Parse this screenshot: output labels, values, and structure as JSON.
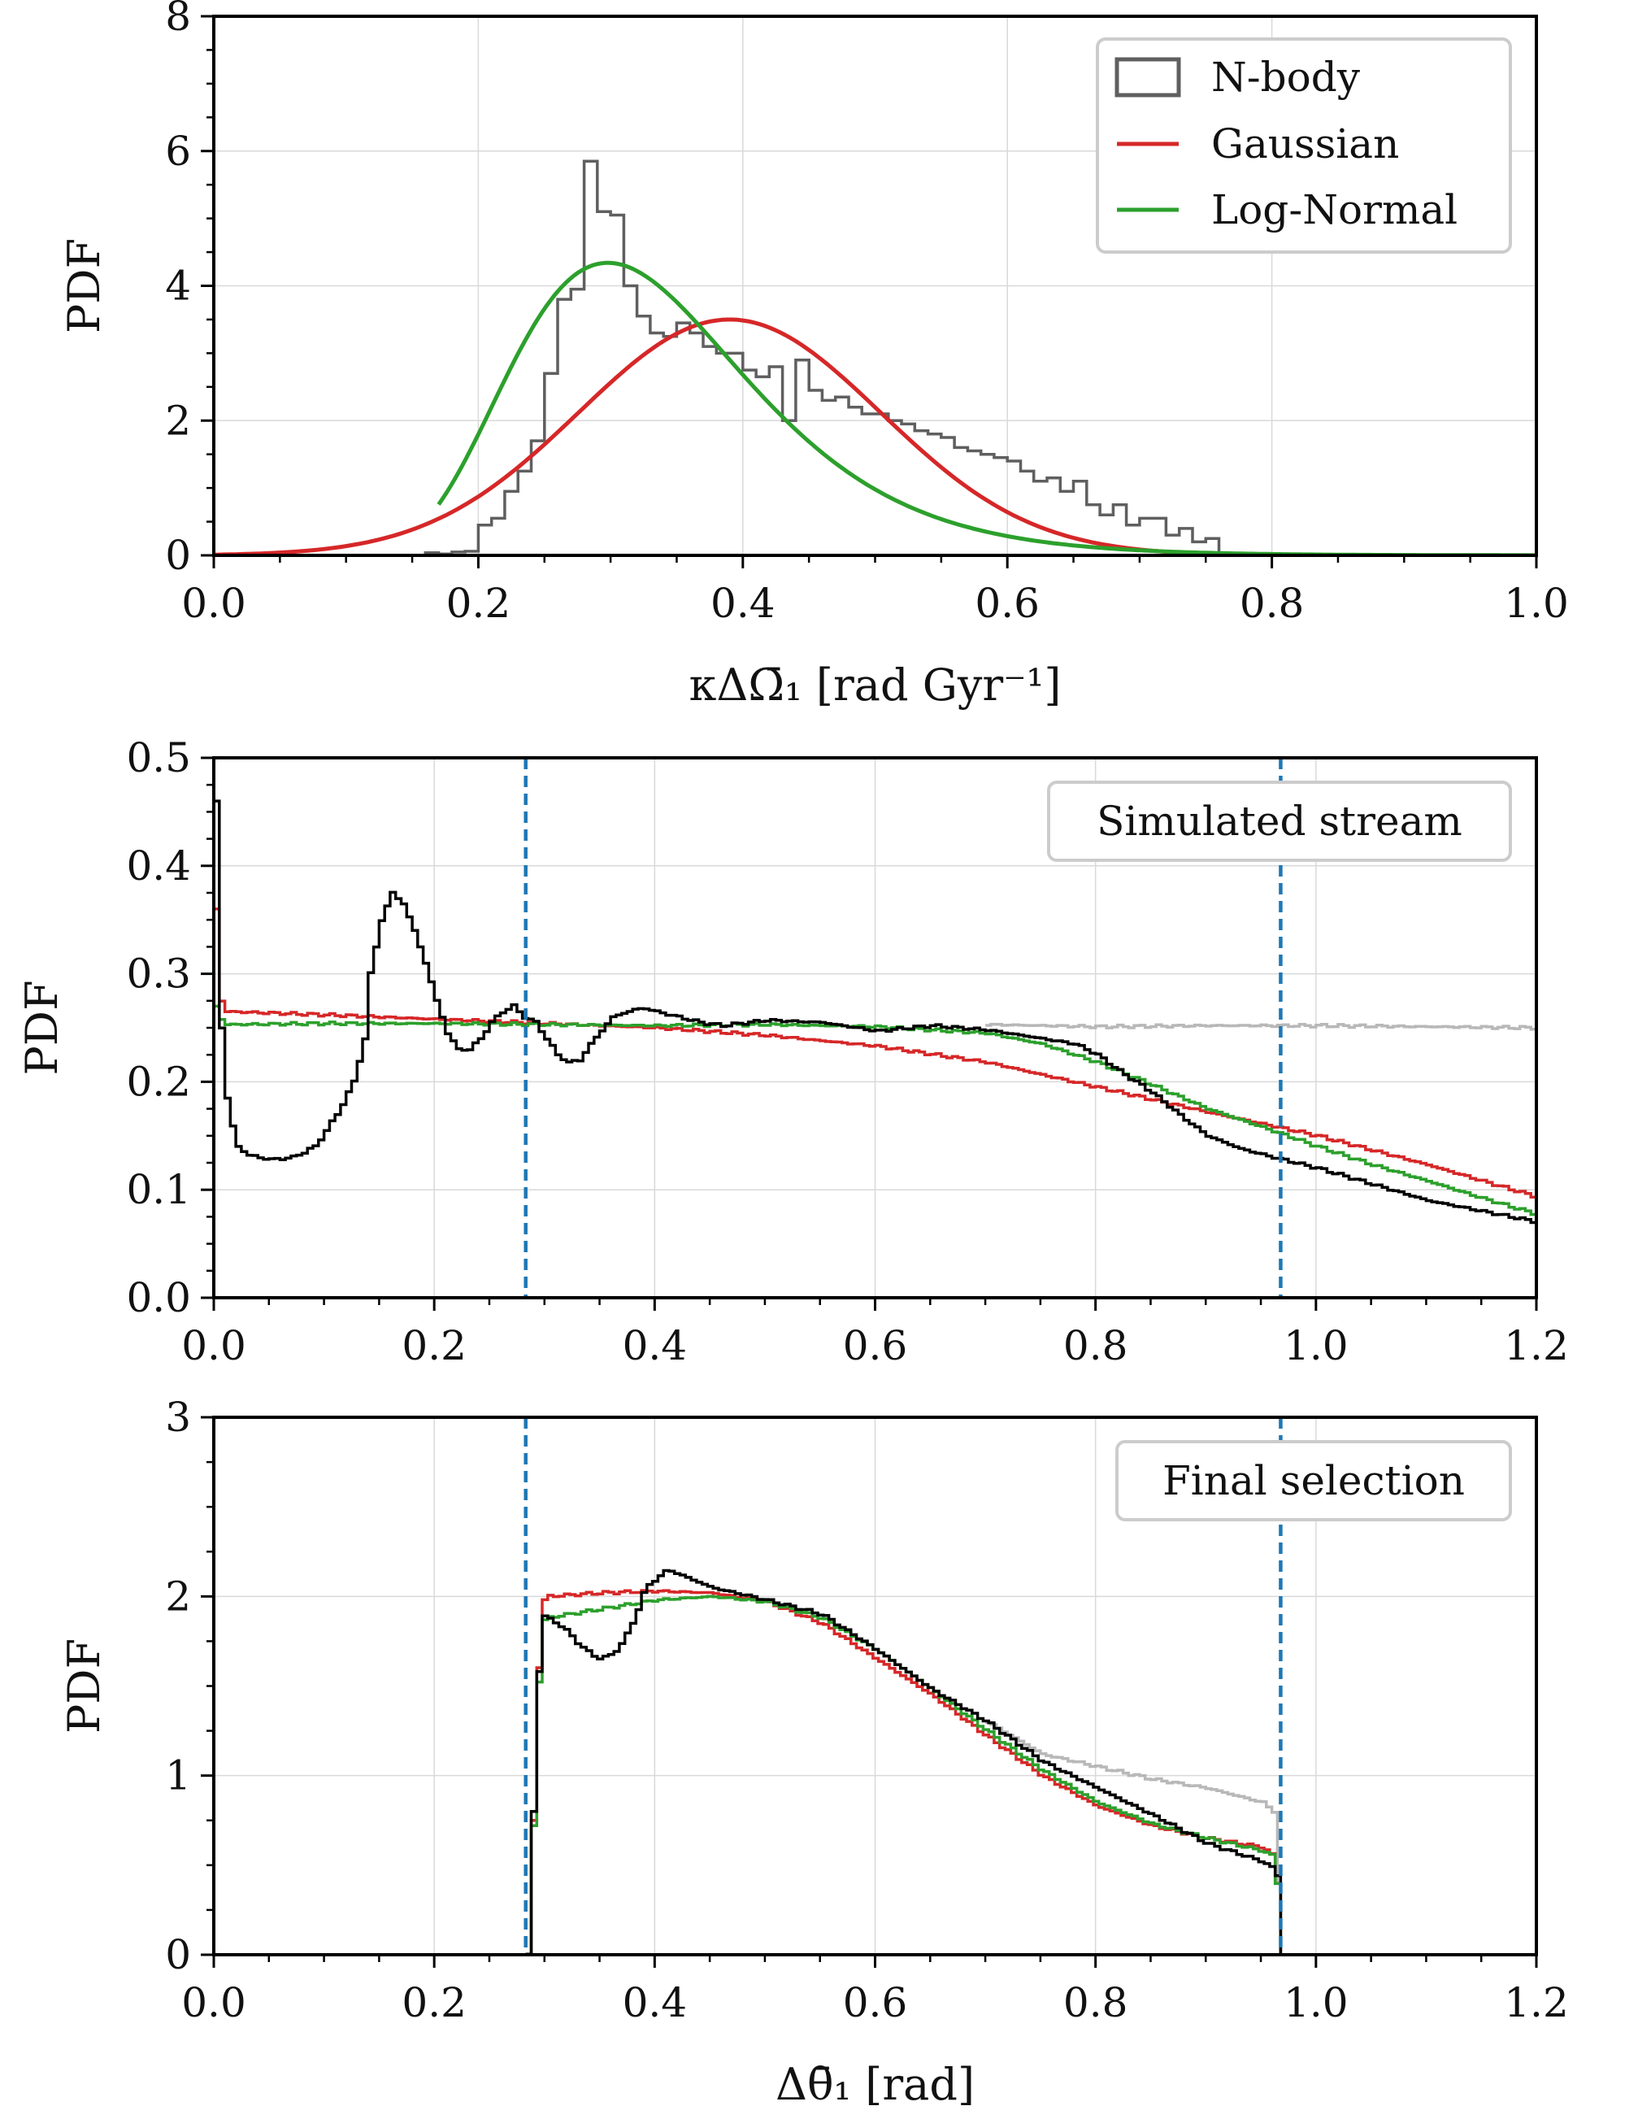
{
  "colors": {
    "nbody": "#5f5f5f",
    "gaussian": "#d62728",
    "lognormal": "#2ca02c",
    "stream_black": "#000000",
    "stream_gray": "#b8b8b8",
    "cut_line": "#1f77b4"
  },
  "chart_data": [
    {
      "type": "line",
      "panel": "top",
      "xlabel": "κΔΩ̄₁ [rad Gyr⁻¹]",
      "ylabel": "PDF",
      "xlim": [
        0.0,
        1.0
      ],
      "ylim": [
        0,
        8
      ],
      "xticks": [
        "0.0",
        "0.2",
        "0.4",
        "0.6",
        "0.8",
        "1.0"
      ],
      "yticks": [
        "0",
        "2",
        "4",
        "6",
        "8"
      ],
      "grid": true,
      "legend": {
        "location": "top-right",
        "entries": [
          "N-body",
          "Gaussian",
          "Log-Normal"
        ]
      },
      "nbody_histogram": {
        "bin_width": 0.01,
        "edges_start": 0.16,
        "heights": [
          0.04,
          0.02,
          0.05,
          0.06,
          0.45,
          0.55,
          0.95,
          1.25,
          1.7,
          2.7,
          3.8,
          3.95,
          5.85,
          5.1,
          5.05,
          4.0,
          3.55,
          3.3,
          3.25,
          3.45,
          3.3,
          3.1,
          3.0,
          3.0,
          2.75,
          2.65,
          2.8,
          2.0,
          2.9,
          2.45,
          2.3,
          2.35,
          2.2,
          2.1,
          2.1,
          2.0,
          1.95,
          1.85,
          1.8,
          1.75,
          1.6,
          1.55,
          1.5,
          1.45,
          1.4,
          1.25,
          1.1,
          1.15,
          0.95,
          1.1,
          0.75,
          0.6,
          0.75,
          0.45,
          0.55,
          0.55,
          0.3,
          0.4,
          0.2,
          0.25
        ]
      },
      "series": [
        {
          "name": "Gaussian",
          "kind": "gaussian",
          "mu": 0.39,
          "sigma": 0.114,
          "peak": 3.5
        },
        {
          "name": "Log-Normal",
          "kind": "lognormal",
          "mode": 0.326,
          "s": 0.3,
          "peak": 4.15,
          "x_start": 0.17
        }
      ]
    },
    {
      "type": "line",
      "panel": "middle",
      "xlabel": "",
      "ylabel": "PDF",
      "xlim": [
        0.0,
        1.2
      ],
      "ylim": [
        0.0,
        0.5
      ],
      "xticks": [
        "0.0",
        "0.2",
        "0.4",
        "0.6",
        "0.8",
        "1.0",
        "1.2"
      ],
      "yticks": [
        "0.0",
        "0.1",
        "0.2",
        "0.3",
        "0.4",
        "0.5"
      ],
      "grid": true,
      "annotation": "Simulated stream",
      "vlines": [
        0.283,
        0.968
      ],
      "series": [
        {
          "name": "black",
          "x": [
            0.0,
            0.005,
            0.008,
            0.012,
            0.02,
            0.03,
            0.05,
            0.07,
            0.09,
            0.11,
            0.125,
            0.135,
            0.14,
            0.15,
            0.16,
            0.17,
            0.18,
            0.19,
            0.2,
            0.21,
            0.22,
            0.23,
            0.24,
            0.25,
            0.26,
            0.27,
            0.28,
            0.29,
            0.3,
            0.31,
            0.32,
            0.33,
            0.34,
            0.36,
            0.38,
            0.39,
            0.4,
            0.42,
            0.44,
            0.46,
            0.5,
            0.55,
            0.6,
            0.65,
            0.7,
            0.75,
            0.78,
            0.8,
            0.82,
            0.85,
            0.88,
            0.9,
            0.93,
            0.96,
            1.0,
            1.05,
            1.1,
            1.15,
            1.2
          ],
          "y": [
            0.46,
            0.25,
            0.2,
            0.17,
            0.14,
            0.132,
            0.128,
            0.13,
            0.14,
            0.17,
            0.2,
            0.24,
            0.3,
            0.35,
            0.375,
            0.365,
            0.34,
            0.31,
            0.275,
            0.245,
            0.23,
            0.23,
            0.24,
            0.255,
            0.265,
            0.27,
            0.26,
            0.255,
            0.24,
            0.225,
            0.218,
            0.22,
            0.235,
            0.26,
            0.267,
            0.268,
            0.265,
            0.26,
            0.255,
            0.252,
            0.257,
            0.255,
            0.247,
            0.252,
            0.248,
            0.24,
            0.235,
            0.225,
            0.21,
            0.19,
            0.165,
            0.15,
            0.138,
            0.13,
            0.12,
            0.105,
            0.09,
            0.08,
            0.07
          ]
        },
        {
          "name": "red",
          "x": [
            0.0,
            0.005,
            0.01,
            0.1,
            0.2,
            0.3,
            0.4,
            0.5,
            0.6,
            0.7,
            0.8,
            0.9,
            1.0,
            1.1,
            1.2
          ],
          "y": [
            0.36,
            0.275,
            0.265,
            0.262,
            0.258,
            0.254,
            0.25,
            0.243,
            0.233,
            0.218,
            0.195,
            0.172,
            0.15,
            0.123,
            0.093
          ]
        },
        {
          "name": "green",
          "x": [
            0.0,
            0.005,
            0.01,
            0.1,
            0.2,
            0.3,
            0.4,
            0.5,
            0.6,
            0.7,
            0.75,
            0.8,
            0.85,
            0.9,
            0.95,
            1.0,
            1.05,
            1.1,
            1.15,
            1.2
          ],
          "y": [
            0.27,
            0.258,
            0.253,
            0.254,
            0.254,
            0.253,
            0.252,
            0.253,
            0.251,
            0.245,
            0.235,
            0.218,
            0.197,
            0.175,
            0.158,
            0.14,
            0.123,
            0.108,
            0.092,
            0.077
          ]
        },
        {
          "name": "gray",
          "x": [
            0.7,
            0.8,
            0.9,
            1.0,
            1.1,
            1.2
          ],
          "y": [
            0.253,
            0.251,
            0.252,
            0.252,
            0.251,
            0.25
          ]
        }
      ]
    },
    {
      "type": "line",
      "panel": "bottom",
      "xlabel": "Δθ̄₁ [rad]",
      "ylabel": "PDF",
      "xlim": [
        0.0,
        1.2
      ],
      "ylim": [
        0,
        3
      ],
      "xticks": [
        "0.0",
        "0.2",
        "0.4",
        "0.6",
        "0.8",
        "1.0",
        "1.2"
      ],
      "yticks": [
        "0",
        "1",
        "2",
        "3"
      ],
      "grid": true,
      "annotation": "Final selection",
      "vlines": [
        0.283,
        0.968
      ],
      "series": [
        {
          "name": "black",
          "x": [
            0.283,
            0.288,
            0.295,
            0.31,
            0.32,
            0.33,
            0.34,
            0.35,
            0.36,
            0.37,
            0.38,
            0.39,
            0.4,
            0.41,
            0.43,
            0.45,
            0.5,
            0.55,
            0.6,
            0.65,
            0.7,
            0.75,
            0.8,
            0.85,
            0.9,
            0.95,
            0.96,
            0.965,
            0.968
          ],
          "y": [
            0.0,
            0.8,
            1.9,
            1.85,
            1.8,
            1.73,
            1.68,
            1.65,
            1.68,
            1.75,
            1.88,
            2.05,
            2.1,
            2.15,
            2.1,
            2.05,
            1.98,
            1.9,
            1.7,
            1.48,
            1.3,
            1.08,
            0.93,
            0.78,
            0.62,
            0.52,
            0.48,
            0.42,
            0.0
          ]
        },
        {
          "name": "red",
          "x": [
            0.283,
            0.288,
            0.295,
            0.3,
            0.35,
            0.4,
            0.45,
            0.5,
            0.55,
            0.6,
            0.65,
            0.7,
            0.75,
            0.8,
            0.85,
            0.9,
            0.95,
            0.96,
            0.965,
            0.968
          ],
          "y": [
            0.0,
            0.75,
            1.95,
            2.0,
            2.02,
            2.03,
            2.02,
            1.97,
            1.85,
            1.65,
            1.45,
            1.22,
            1.0,
            0.83,
            0.72,
            0.65,
            0.6,
            0.55,
            0.3,
            0.0
          ]
        },
        {
          "name": "green",
          "x": [
            0.283,
            0.288,
            0.295,
            0.3,
            0.35,
            0.4,
            0.45,
            0.5,
            0.55,
            0.6,
            0.65,
            0.7,
            0.75,
            0.8,
            0.85,
            0.9,
            0.95,
            0.96,
            0.965,
            0.968
          ],
          "y": [
            0.0,
            0.72,
            1.85,
            1.88,
            1.93,
            1.98,
            2.0,
            1.97,
            1.88,
            1.7,
            1.48,
            1.25,
            1.03,
            0.85,
            0.73,
            0.65,
            0.58,
            0.55,
            0.3,
            0.0
          ]
        },
        {
          "name": "gray",
          "x": [
            0.7,
            0.75,
            0.8,
            0.85,
            0.9,
            0.95,
            0.96,
            0.965
          ],
          "y": [
            1.3,
            1.12,
            1.05,
            0.98,
            0.93,
            0.85,
            0.8,
            0.4
          ]
        }
      ]
    }
  ]
}
